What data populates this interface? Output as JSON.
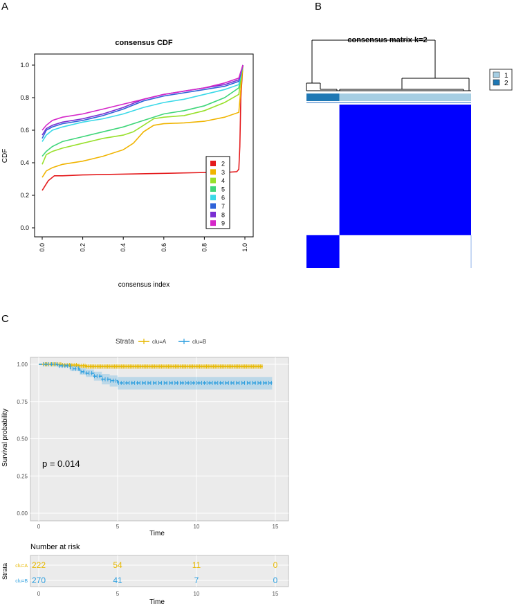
{
  "panels": {
    "a": "A",
    "b": "B",
    "c": "C"
  },
  "chart_data": [
    {
      "type": "line",
      "title": "consensus CDF",
      "xlabel": "consensus index",
      "ylabel": "CDF",
      "xlim": [
        0,
        1
      ],
      "ylim": [
        0,
        1
      ],
      "xticks": [
        "0.0",
        "0.2",
        "0.4",
        "0.6",
        "0.8",
        "1.0"
      ],
      "yticks": [
        "0.0",
        "0.2",
        "0.4",
        "0.6",
        "0.8",
        "1.0"
      ],
      "grid": false,
      "legend_position": "right",
      "series": [
        {
          "name": "2",
          "color": "#e41a1c",
          "x": [
            0,
            0.01,
            0.03,
            0.06,
            0.1,
            0.2,
            0.4,
            0.6,
            0.8,
            0.9,
            0.96,
            0.97,
            0.975,
            0.98,
            0.99
          ],
          "y": [
            0.23,
            0.25,
            0.29,
            0.32,
            0.32,
            0.325,
            0.33,
            0.335,
            0.34,
            0.34,
            0.345,
            0.36,
            0.5,
            0.8,
            1.0
          ]
        },
        {
          "name": "3",
          "color": "#f0b400",
          "x": [
            0,
            0.02,
            0.05,
            0.1,
            0.2,
            0.3,
            0.4,
            0.45,
            0.5,
            0.55,
            0.6,
            0.7,
            0.8,
            0.9,
            0.97,
            0.99
          ],
          "y": [
            0.31,
            0.35,
            0.37,
            0.39,
            0.41,
            0.44,
            0.48,
            0.52,
            0.59,
            0.63,
            0.64,
            0.645,
            0.655,
            0.68,
            0.71,
            1.0
          ]
        },
        {
          "name": "4",
          "color": "#98e02a",
          "x": [
            0,
            0.02,
            0.05,
            0.1,
            0.2,
            0.3,
            0.4,
            0.45,
            0.5,
            0.55,
            0.6,
            0.7,
            0.8,
            0.9,
            0.97,
            0.99
          ],
          "y": [
            0.39,
            0.45,
            0.47,
            0.49,
            0.52,
            0.55,
            0.57,
            0.59,
            0.63,
            0.67,
            0.68,
            0.69,
            0.72,
            0.77,
            0.82,
            1.0
          ]
        },
        {
          "name": "5",
          "color": "#3fd67a",
          "x": [
            0,
            0.02,
            0.05,
            0.1,
            0.2,
            0.3,
            0.4,
            0.5,
            0.6,
            0.7,
            0.8,
            0.9,
            0.97,
            0.99
          ],
          "y": [
            0.44,
            0.47,
            0.5,
            0.53,
            0.56,
            0.59,
            0.62,
            0.66,
            0.7,
            0.72,
            0.75,
            0.8,
            0.86,
            1.0
          ]
        },
        {
          "name": "6",
          "color": "#3ad9e8",
          "x": [
            0,
            0.02,
            0.05,
            0.1,
            0.2,
            0.3,
            0.4,
            0.5,
            0.6,
            0.7,
            0.8,
            0.9,
            0.97,
            0.99
          ],
          "y": [
            0.53,
            0.57,
            0.6,
            0.62,
            0.65,
            0.67,
            0.7,
            0.74,
            0.77,
            0.79,
            0.82,
            0.85,
            0.88,
            1.0
          ]
        },
        {
          "name": "7",
          "color": "#2f63d8",
          "x": [
            0,
            0.02,
            0.05,
            0.1,
            0.2,
            0.3,
            0.4,
            0.5,
            0.6,
            0.7,
            0.8,
            0.9,
            0.97,
            0.99
          ],
          "y": [
            0.55,
            0.6,
            0.62,
            0.64,
            0.66,
            0.69,
            0.73,
            0.78,
            0.81,
            0.83,
            0.85,
            0.87,
            0.9,
            1.0
          ]
        },
        {
          "name": "8",
          "color": "#7a2fd2",
          "x": [
            0,
            0.02,
            0.05,
            0.1,
            0.2,
            0.3,
            0.4,
            0.5,
            0.6,
            0.7,
            0.8,
            0.9,
            0.97,
            0.99
          ],
          "y": [
            0.57,
            0.61,
            0.63,
            0.65,
            0.67,
            0.7,
            0.74,
            0.79,
            0.82,
            0.84,
            0.86,
            0.88,
            0.91,
            1.0
          ]
        },
        {
          "name": "9",
          "color": "#d526c8",
          "x": [
            0,
            0.02,
            0.05,
            0.1,
            0.2,
            0.3,
            0.4,
            0.5,
            0.6,
            0.7,
            0.8,
            0.9,
            0.97,
            0.99
          ],
          "y": [
            0.6,
            0.63,
            0.66,
            0.68,
            0.7,
            0.73,
            0.76,
            0.79,
            0.82,
            0.84,
            0.86,
            0.89,
            0.92,
            1.0
          ]
        }
      ]
    },
    {
      "type": "heatmap",
      "title": "consensus matrix k=2",
      "legend": [
        {
          "name": "1",
          "color": "#a6cee3"
        },
        {
          "name": "2",
          "color": "#1f78b4"
        }
      ],
      "colors": {
        "high": "#0000ff",
        "low": "#ffffff"
      },
      "cluster_fractions": [
        0.2,
        0.8
      ],
      "order": [
        "2",
        "1"
      ]
    },
    {
      "type": "line",
      "subtype": "kaplan-meier",
      "legend_title": "Strata",
      "xlabel": "Time",
      "ylabel": "Survival probability",
      "xlim": [
        0,
        15
      ],
      "ylim": [
        0,
        1
      ],
      "xticks": [
        "0",
        "5",
        "10",
        "15"
      ],
      "yticks": [
        "0.00",
        "0.25",
        "0.50",
        "0.75",
        "1.00"
      ],
      "annotation": "p = 0.014",
      "series": [
        {
          "name": "clu=A",
          "color": "#e7b800",
          "time": [
            0,
            1.5,
            2.5,
            3.0,
            14.2
          ],
          "survival": [
            1.0,
            0.995,
            0.99,
            0.985,
            0.985
          ],
          "ci_low": [
            1.0,
            0.985,
            0.975,
            0.97,
            0.97
          ],
          "ci_high": [
            1.0,
            1.0,
            1.0,
            1.0,
            1.0
          ]
        },
        {
          "name": "clu=B",
          "color": "#2e9fdf",
          "time": [
            0,
            1.2,
            2.0,
            2.6,
            3.0,
            3.5,
            4.0,
            4.5,
            5.0,
            14.8
          ],
          "survival": [
            1.0,
            0.99,
            0.97,
            0.95,
            0.94,
            0.92,
            0.9,
            0.89,
            0.875,
            0.875
          ],
          "ci_low": [
            1.0,
            0.98,
            0.955,
            0.93,
            0.915,
            0.89,
            0.865,
            0.85,
            0.83,
            0.83
          ],
          "ci_high": [
            1.0,
            1.0,
            0.99,
            0.975,
            0.965,
            0.95,
            0.935,
            0.925,
            0.915,
            0.915
          ]
        }
      ]
    },
    {
      "type": "table",
      "title": "Number at risk",
      "ylabel": "Strata",
      "xlabel": "Time",
      "times": [
        0,
        5,
        10,
        15
      ],
      "xticks": [
        "0",
        "5",
        "10",
        "15"
      ],
      "rows": [
        {
          "name": "clu=A",
          "color": "#e7b800",
          "values": [
            "222",
            "54",
            "11",
            "0"
          ]
        },
        {
          "name": "clu=B",
          "color": "#2e9fdf",
          "values": [
            "270",
            "41",
            "7",
            "0"
          ]
        }
      ]
    }
  ]
}
